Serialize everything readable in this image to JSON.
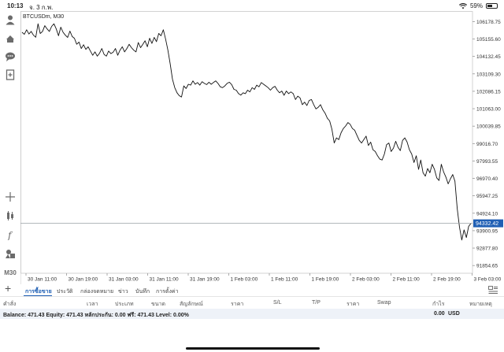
{
  "status_bar": {
    "time": "10:13",
    "date": "จ. 3 ก.พ.",
    "battery": "59%"
  },
  "chart": {
    "symbol": "BTCUSDm, M30",
    "current_price": "94332.42",
    "price_line_color": "#1f5fb4"
  },
  "chart_data": {
    "type": "line",
    "title": "BTCUSDm, M30",
    "y_ticks": [
      "106178.75",
      "105155.60",
      "104132.45",
      "103109.30",
      "102086.15",
      "101063.00",
      "100039.85",
      "99016.70",
      "97993.55",
      "96970.40",
      "95947.25",
      "94924.10",
      "93900.95",
      "92877.80",
      "91854.65"
    ],
    "x_ticks": [
      "30 Jan 11:00",
      "30 Jan 19:00",
      "31 Jan 03:00",
      "31 Jan 11:00",
      "31 Jan 19:00",
      "1 Feb 03:00",
      "1 Feb 11:00",
      "1 Feb 19:00",
      "2 Feb 03:00",
      "2 Feb 11:00",
      "2 Feb 19:00",
      "3 Feb 03:00"
    ],
    "ylim": [
      91400,
      106800
    ],
    "current_price": 94332.42,
    "series": [
      {
        "values": [
          105550,
          105430,
          105700,
          105450,
          105600,
          105380,
          105260,
          106050,
          105480,
          105600,
          105940,
          105750,
          105600,
          105900,
          106050,
          105750,
          105350,
          105850,
          105550,
          105380,
          105250,
          105620,
          105300,
          105200,
          104850,
          104980,
          104600,
          104820,
          104550,
          104700,
          104450,
          104200,
          104400,
          104150,
          104320,
          104600,
          104250,
          104150,
          104450,
          104300,
          104380,
          104600,
          104200,
          104500,
          104700,
          104400,
          104600,
          104850,
          104650,
          104500,
          104400,
          104950,
          104650,
          104850,
          105050,
          104700,
          105200,
          104900,
          105250,
          105000,
          105480,
          105350,
          105700,
          105150,
          104500,
          103700,
          102800,
          102300,
          102000,
          101830,
          101750,
          102400,
          102250,
          102500,
          102450,
          102700,
          102500,
          102600,
          102450,
          102650,
          102550,
          102480,
          102620,
          102500,
          102600,
          102700,
          102550,
          102350,
          102300,
          102400,
          102550,
          102620,
          102480,
          102200,
          102150,
          101950,
          101860,
          102000,
          101950,
          102150,
          102050,
          102300,
          102200,
          102450,
          102350,
          102600,
          102500,
          102400,
          102300,
          102150,
          102300,
          102380,
          102150,
          102000,
          102100,
          101850,
          102100,
          101950,
          102050,
          101950,
          101600,
          101800,
          101700,
          101300,
          101450,
          101250,
          101550,
          101600,
          101300,
          101050,
          101150,
          101300,
          101000,
          100800,
          100500,
          100350,
          99850,
          99050,
          99350,
          99250,
          99650,
          99900,
          100050,
          100250,
          100150,
          99900,
          99800,
          99500,
          99200,
          99050,
          99250,
          99450,
          98900,
          99100,
          98650,
          98550,
          98300,
          98100,
          98050,
          98400,
          98950,
          99050,
          98550,
          98750,
          99150,
          98800,
          98600,
          99200,
          99350,
          99100,
          98650,
          98400,
          97900,
          98300,
          97500,
          98050,
          97300,
          97100,
          97550,
          97300,
          97800,
          97500,
          97000,
          96850,
          97800,
          97350,
          97050,
          96650,
          96950,
          97200,
          96800,
          95200,
          94100,
          93350,
          93950,
          93500,
          94150,
          94332
        ]
      }
    ]
  },
  "sidebar": {
    "icons": [
      "user-icon",
      "trade-icon",
      "chat-icon",
      "add-document-icon",
      "crosshair-icon",
      "indicators-icon",
      "function-icon",
      "objects-icon"
    ],
    "timeframe": "M30"
  },
  "tabs": [
    {
      "label": "การซื้อขาย",
      "active": true
    },
    {
      "label": "ประวัติ",
      "active": false
    },
    {
      "label": "กล่องจดหมาย",
      "active": false
    },
    {
      "label": "ข่าว",
      "active": false
    },
    {
      "label": "บันทึก",
      "active": false
    },
    {
      "label": "การตั้งค่า",
      "active": false
    }
  ],
  "columns": [
    "คำสั่ง",
    "เวลา",
    "ประเภท",
    "ขนาด",
    "สัญลักษณ์",
    "ราคา",
    "S/L",
    "T/P",
    "ราคา",
    "Swap",
    "กำไร",
    "หมายเหตุ"
  ],
  "balance": {
    "text": "Balance: 471.43 Equity: 471.43 หลักประกัน: 0.00 ฟรี: 471.43 Level: 0.00%",
    "profit": "0.00",
    "currency": "USD"
  }
}
